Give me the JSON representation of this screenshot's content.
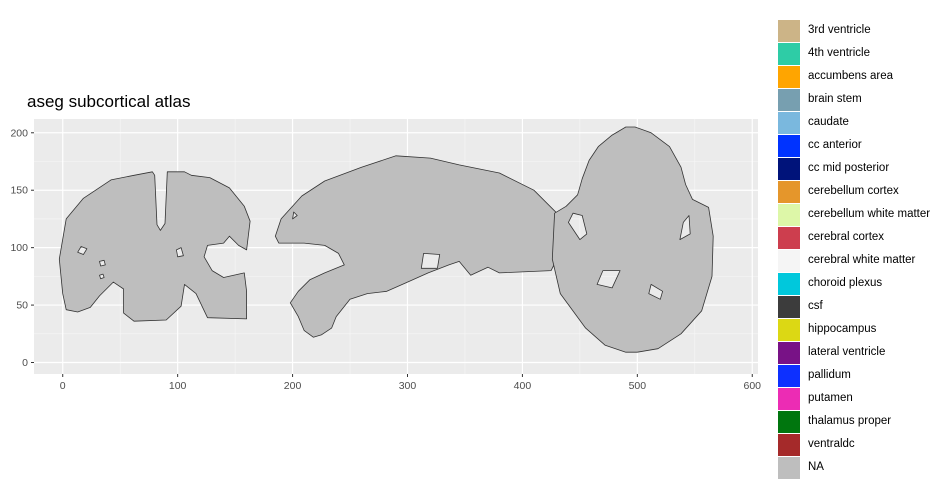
{
  "chart_data": {
    "type": "map",
    "title": "aseg subcortical atlas",
    "xlim": [
      -25,
      605
    ],
    "ylim": [
      -10,
      212
    ],
    "x_ticks": [
      0,
      100,
      200,
      300,
      400,
      500,
      600
    ],
    "y_ticks": [
      0,
      50,
      100,
      150,
      200
    ],
    "grid": true,
    "legend_position": "right",
    "legend": [
      {
        "label": "3rd ventricle",
        "color": "#CCB487"
      },
      {
        "label": "4th ventricle",
        "color": "#2ECCA6"
      },
      {
        "label": "accumbens area",
        "color": "#FFA500"
      },
      {
        "label": "brain stem",
        "color": "#779FB0"
      },
      {
        "label": "caudate",
        "color": "#7AB8DE"
      },
      {
        "label": "cc anterior",
        "color": "#0033FF"
      },
      {
        "label": "cc mid posterior",
        "color": "#00137A"
      },
      {
        "label": "cerebellum cortex",
        "color": "#E5962B"
      },
      {
        "label": "cerebellum white matter",
        "color": "#DDF7A8"
      },
      {
        "label": "cerebral cortex",
        "color": "#CD3E4E"
      },
      {
        "label": "cerebral white matter",
        "color": "#F5F5F5"
      },
      {
        "label": "choroid plexus",
        "color": "#00C8DC"
      },
      {
        "label": "csf",
        "color": "#3C3C3C"
      },
      {
        "label": "hippocampus",
        "color": "#DCD814"
      },
      {
        "label": "lateral ventricle",
        "color": "#781286"
      },
      {
        "label": "pallidum",
        "color": "#0D30FF"
      },
      {
        "label": "putamen",
        "color": "#EC2CB4"
      },
      {
        "label": "thalamus proper",
        "color": "#00760E"
      },
      {
        "label": "ventraldc",
        "color": "#A52A2A"
      },
      {
        "label": "NA",
        "color": "#BEBEBE"
      }
    ],
    "regions_fill": "#BEBEBE",
    "regions": [
      {
        "view": "coronal",
        "outline": [
          [
            0,
            60
          ],
          [
            -3,
            90
          ],
          [
            3,
            125
          ],
          [
            18,
            143
          ],
          [
            42,
            159
          ],
          [
            62,
            163
          ],
          [
            78,
            166
          ],
          [
            80,
            163
          ],
          [
            82,
            120
          ],
          [
            85,
            115
          ],
          [
            89,
            121
          ],
          [
            91,
            166
          ],
          [
            106,
            166
          ],
          [
            112,
            163
          ],
          [
            128,
            161
          ],
          [
            145,
            152
          ],
          [
            158,
            136
          ],
          [
            163,
            123
          ],
          [
            160,
            98
          ],
          [
            153,
            102
          ],
          [
            145,
            110
          ],
          [
            140,
            104
          ],
          [
            126,
            102
          ],
          [
            123,
            92
          ],
          [
            130,
            80
          ],
          [
            140,
            74
          ],
          [
            158,
            78
          ],
          [
            160,
            62
          ],
          [
            160,
            38
          ],
          [
            126,
            39
          ],
          [
            116,
            60
          ],
          [
            106,
            68
          ],
          [
            103,
            49
          ],
          [
            90,
            37
          ],
          [
            62,
            36
          ],
          [
            53,
            43
          ],
          [
            53,
            64
          ],
          [
            44,
            70
          ],
          [
            32,
            58
          ],
          [
            24,
            48
          ],
          [
            13,
            44
          ],
          [
            3,
            46
          ]
        ],
        "holes": [
          [
            [
              13,
              96
            ],
            [
              18,
              94
            ],
            [
              21,
              99
            ],
            [
              16,
              101
            ]
          ],
          [
            [
              33,
              84
            ],
            [
              37,
              85
            ],
            [
              36,
              89
            ],
            [
              32,
              88
            ]
          ],
          [
            [
              33,
              73
            ],
            [
              36,
              74
            ],
            [
              35,
              77
            ],
            [
              32,
              76
            ]
          ],
          [
            [
              100,
              92
            ],
            [
              105,
              93
            ],
            [
              103,
              100
            ],
            [
              99,
              98
            ]
          ]
        ]
      },
      {
        "view": "sagittal",
        "outline": [
          [
            185,
            110
          ],
          [
            190,
            125
          ],
          [
            208,
            145
          ],
          [
            228,
            158
          ],
          [
            260,
            170
          ],
          [
            290,
            180
          ],
          [
            320,
            178
          ],
          [
            345,
            172
          ],
          [
            380,
            165
          ],
          [
            410,
            150
          ],
          [
            430,
            130
          ],
          [
            435,
            100
          ],
          [
            425,
            80
          ],
          [
            380,
            78
          ],
          [
            370,
            83
          ],
          [
            355,
            76
          ],
          [
            345,
            88
          ],
          [
            336,
            85
          ],
          [
            318,
            78
          ],
          [
            300,
            70
          ],
          [
            282,
            62
          ],
          [
            265,
            60
          ],
          [
            250,
            55
          ],
          [
            238,
            40
          ],
          [
            234,
            30
          ],
          [
            225,
            24
          ],
          [
            218,
            22
          ],
          [
            210,
            28
          ],
          [
            205,
            40
          ],
          [
            198,
            52
          ],
          [
            205,
            62
          ],
          [
            215,
            72
          ],
          [
            228,
            78
          ],
          [
            245,
            85
          ],
          [
            240,
            95
          ],
          [
            228,
            102
          ],
          [
            210,
            104
          ],
          [
            195,
            104
          ],
          [
            188,
            104
          ]
        ],
        "holes": [
          [
            [
              200,
              125
            ],
            [
              204,
              128
            ],
            [
              201,
              131
            ]
          ],
          [
            [
              312,
              82
            ],
            [
              326,
              82
            ],
            [
              328,
              94
            ],
            [
              314,
              95
            ]
          ]
        ]
      },
      {
        "view": "axial",
        "outline": [
          [
            428,
            130
          ],
          [
            426,
            90
          ],
          [
            433,
            60
          ],
          [
            455,
            30
          ],
          [
            472,
            15
          ],
          [
            490,
            9
          ],
          [
            500,
            9
          ],
          [
            518,
            12
          ],
          [
            538,
            25
          ],
          [
            556,
            45
          ],
          [
            565,
            75
          ],
          [
            566,
            110
          ],
          [
            562,
            135
          ],
          [
            548,
            142
          ],
          [
            542,
            155
          ],
          [
            538,
            170
          ],
          [
            528,
            188
          ],
          [
            512,
            200
          ],
          [
            498,
            205
          ],
          [
            490,
            205
          ],
          [
            478,
            198
          ],
          [
            466,
            188
          ],
          [
            458,
            176
          ],
          [
            452,
            160
          ],
          [
            448,
            146
          ],
          [
            438,
            136
          ]
        ],
        "holes": [
          [
            [
              465,
              68
            ],
            [
              478,
              65
            ],
            [
              485,
              80
            ],
            [
              470,
              80
            ]
          ],
          [
            [
              510,
              60
            ],
            [
              520,
              55
            ],
            [
              522,
              62
            ],
            [
              512,
              68
            ]
          ],
          [
            [
              450,
              107
            ],
            [
              456,
              112
            ],
            [
              452,
              128
            ],
            [
              444,
              130
            ],
            [
              440,
              122
            ]
          ],
          [
            [
              537,
              107
            ],
            [
              546,
              112
            ],
            [
              545,
              128
            ],
            [
              540,
              122
            ]
          ]
        ]
      }
    ]
  }
}
